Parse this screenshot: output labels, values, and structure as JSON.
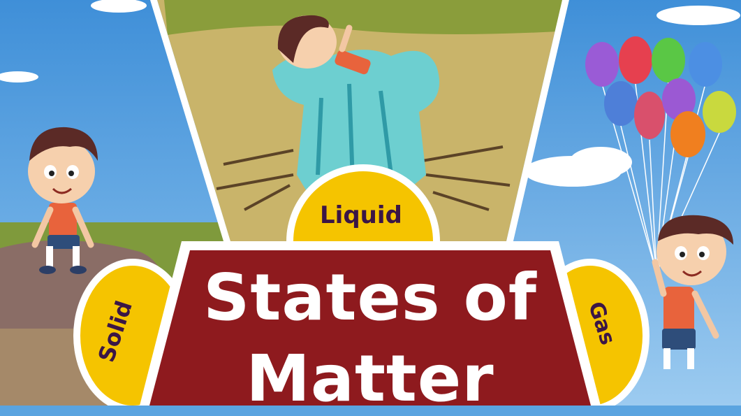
{
  "title": {
    "line1": "States of",
    "line2": "Matter"
  },
  "badges": {
    "liquid": "Liquid",
    "solid": "Solid",
    "gas": "Gas"
  },
  "colors": {
    "sky": "#5aa4e0",
    "title_banner": "#8e1a1e",
    "badge_fill": "#f5c400",
    "badge_text": "#3b1646",
    "ground": "#c9b46a"
  }
}
